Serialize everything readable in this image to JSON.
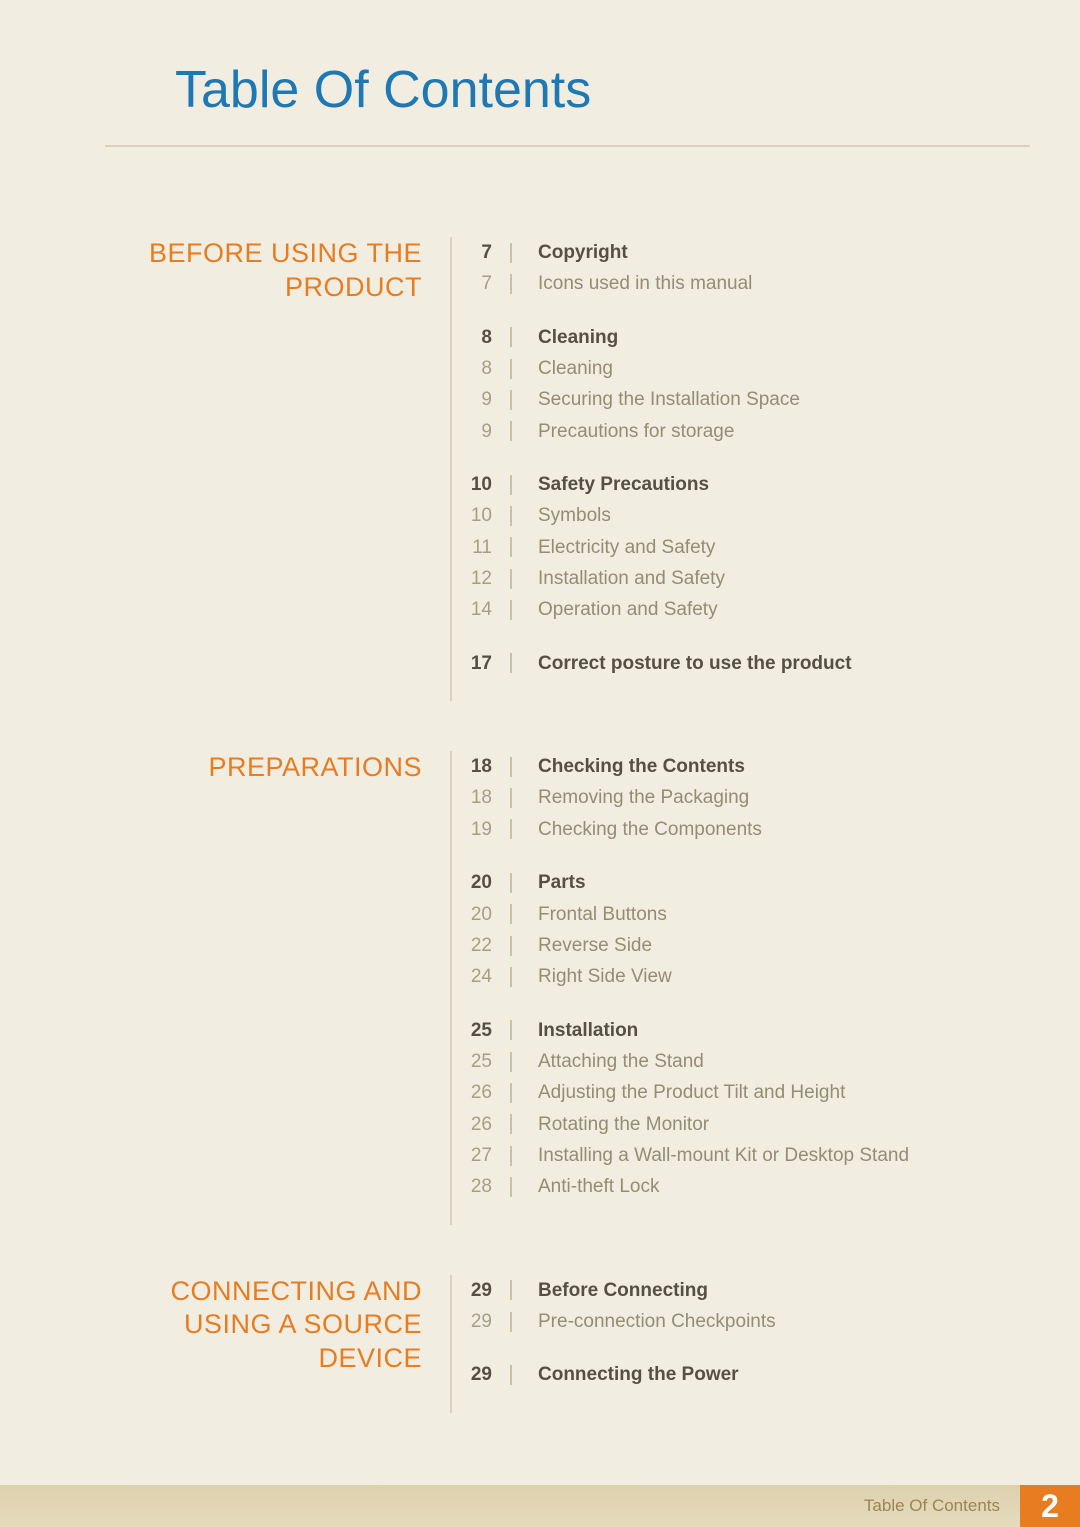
{
  "page_title": "Table Of Contents",
  "footer_label": "Table Of Contents",
  "footer_page_number": "2",
  "colors": {
    "title_color": "#1e78b4",
    "section_heading_color": "#e77c21",
    "bold_text_color": "#555043",
    "light_text_color": "#948c74",
    "light_page_color": "#a59e87",
    "background": "#f1ede1",
    "divider": "#d9d1bb",
    "footer_bg": "#ddd0ad",
    "footer_text": "#9a8654",
    "footer_page_bg": "#e77c21"
  },
  "sections": [
    {
      "name": "BEFORE USING THE PRODUCT",
      "groups": [
        {
          "entries": [
            {
              "page": "7",
              "text": "Copyright",
              "bold": true
            },
            {
              "page": "7",
              "text": "Icons used in this manual",
              "bold": false
            }
          ]
        },
        {
          "entries": [
            {
              "page": "8",
              "text": "Cleaning",
              "bold": true
            },
            {
              "page": "8",
              "text": "Cleaning",
              "bold": false
            },
            {
              "page": "9",
              "text": "Securing the Installation Space",
              "bold": false
            },
            {
              "page": "9",
              "text": "Precautions for storage",
              "bold": false
            }
          ]
        },
        {
          "entries": [
            {
              "page": "10",
              "text": "Safety Precautions",
              "bold": true
            },
            {
              "page": "10",
              "text": "Symbols",
              "bold": false
            },
            {
              "page": "11",
              "text": "Electricity and Safety",
              "bold": false
            },
            {
              "page": "12",
              "text": "Installation and Safety",
              "bold": false
            },
            {
              "page": "14",
              "text": "Operation and Safety",
              "bold": false
            }
          ]
        },
        {
          "entries": [
            {
              "page": "17",
              "text": "Correct posture to use the product",
              "bold": true
            }
          ]
        }
      ]
    },
    {
      "name": "PREPARATIONS",
      "groups": [
        {
          "entries": [
            {
              "page": "18",
              "text": "Checking the Contents",
              "bold": true
            },
            {
              "page": "18",
              "text": "Removing the Packaging",
              "bold": false
            },
            {
              "page": "19",
              "text": "Checking the Components",
              "bold": false
            }
          ]
        },
        {
          "entries": [
            {
              "page": "20",
              "text": "Parts",
              "bold": true
            },
            {
              "page": "20",
              "text": "Frontal Buttons",
              "bold": false
            },
            {
              "page": "22",
              "text": "Reverse Side",
              "bold": false
            },
            {
              "page": "24",
              "text": "Right Side View",
              "bold": false
            }
          ]
        },
        {
          "entries": [
            {
              "page": "25",
              "text": "Installation",
              "bold": true
            },
            {
              "page": "25",
              "text": "Attaching the Stand",
              "bold": false
            },
            {
              "page": "26",
              "text": "Adjusting the Product Tilt and Height",
              "bold": false
            },
            {
              "page": "26",
              "text": "Rotating the Monitor",
              "bold": false
            },
            {
              "page": "27",
              "text": "Installing a Wall-mount Kit or Desktop Stand",
              "bold": false
            },
            {
              "page": "28",
              "text": "Anti-theft Lock",
              "bold": false
            }
          ]
        }
      ]
    },
    {
      "name": "CONNECTING AND USING A SOURCE DEVICE",
      "groups": [
        {
          "entries": [
            {
              "page": "29",
              "text": "Before Connecting",
              "bold": true
            },
            {
              "page": "29",
              "text": "Pre-connection Checkpoints",
              "bold": false
            }
          ]
        },
        {
          "entries": [
            {
              "page": "29",
              "text": "Connecting the Power",
              "bold": true
            }
          ]
        }
      ]
    }
  ]
}
